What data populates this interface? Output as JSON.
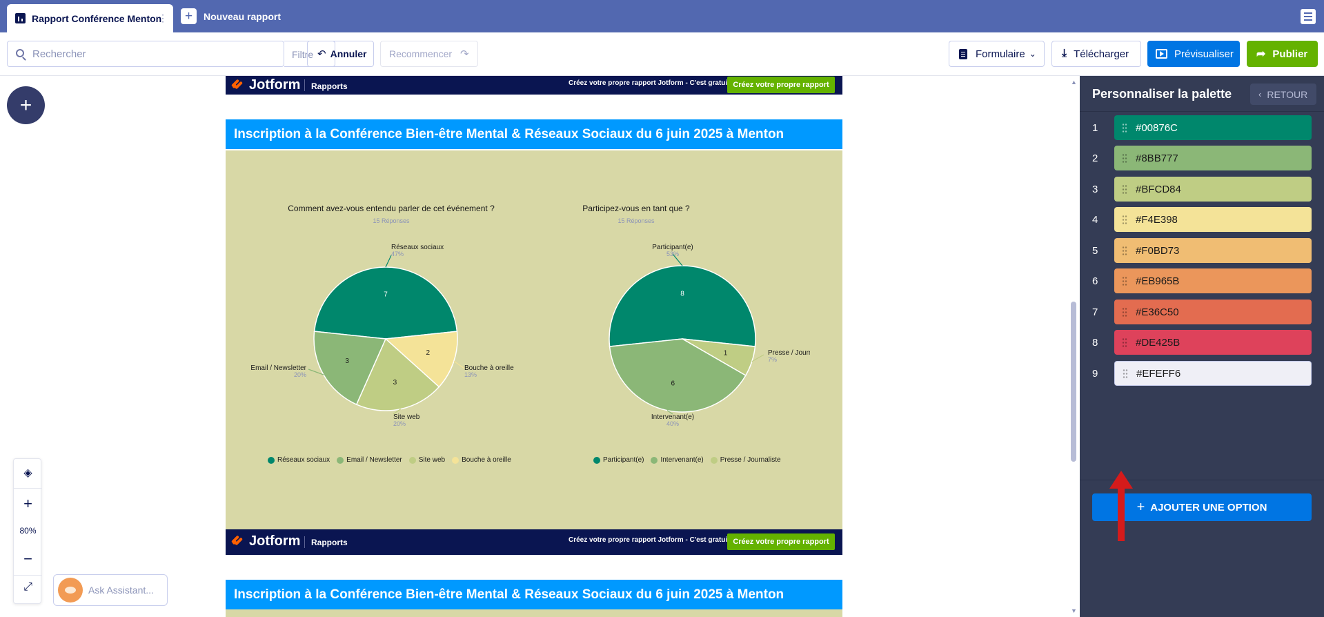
{
  "tabs": {
    "active_label": "Rapport Conférence Menton",
    "new_label": "Nouveau rapport"
  },
  "toolbar": {
    "search_placeholder": "Rechercher",
    "filter_label": "Filtre",
    "undo_label": "Annuler",
    "redo_label": "Recommencer",
    "form_label": "Formulaire",
    "download_label": "Télécharger",
    "preview_label": "Prévisualiser",
    "publish_label": "Publier"
  },
  "canvas": {
    "zoom_level": "80%",
    "assistant_label": "Ask Assistant..."
  },
  "report": {
    "brand": "Jotform",
    "brand_sub": "Rapports",
    "cta_text": "Créez votre propre rapport Jotform - C'est gratuit",
    "cta_button": "Créez votre propre rapport",
    "title": "Inscription à la Conférence Bien-être Mental & Réseaux Sociaux du 6 juin 2025 à Menton",
    "colors": {
      "header_bg": "#0099ff",
      "body_bg": "#d8d8a6",
      "bar_bg": "#0a1551",
      "cta_green": "#64b200"
    },
    "charts": [
      {
        "title": "Comment avez-vous entendu parler de cet événement ?",
        "subtitle": "15 Réponses",
        "slices": [
          {
            "label": "Réseaux sociaux",
            "value": 7,
            "pct": "47%",
            "color": "#00876C",
            "legend": "Réseaux sociaux"
          },
          {
            "label": "Bouche à oreille",
            "value": 2,
            "pct": "13%",
            "color": "#F4E398",
            "legend": "Bouche à oreille"
          },
          {
            "label": "Site web",
            "value": 3,
            "pct": "20%",
            "color": "#BFCD84",
            "legend": "Site web"
          },
          {
            "label": "Email / Newsletter",
            "value": 3,
            "pct": "20%",
            "color": "#8BB777",
            "legend": "Email / Newsletter"
          }
        ],
        "legend": [
          "Réseaux sociaux",
          "Email / Newsletter",
          "Site web",
          "Bouche à oreille"
        ]
      },
      {
        "title": "Participez-vous en tant que ?",
        "subtitle": "15 Réponses",
        "slices": [
          {
            "label": "Participant(e)",
            "value": 8,
            "pct": "53%",
            "color": "#00876C"
          },
          {
            "label": "Presse / Journaliste",
            "display_label": "Presse / Journai",
            "value": 1,
            "pct": "7%",
            "color": "#BFCD84"
          },
          {
            "label": "Intervenant(e)",
            "value": 6,
            "pct": "40%",
            "color": "#8BB777"
          }
        ],
        "legend": [
          "Participant(e)",
          "Intervenant(e)",
          "Presse / Journaliste"
        ]
      }
    ]
  },
  "chart_data": [
    {
      "type": "pie",
      "title": "Comment avez-vous entendu parler de cet événement ?",
      "subtitle": "15 Réponses",
      "categories": [
        "Réseaux sociaux",
        "Bouche à oreille",
        "Site web",
        "Email / Newsletter"
      ],
      "values": [
        7,
        2,
        3,
        3
      ],
      "percentages": [
        "47%",
        "13%",
        "20%",
        "20%"
      ],
      "legend_placement": "bottom"
    },
    {
      "type": "pie",
      "title": "Participez-vous en tant que ?",
      "subtitle": "15 Réponses",
      "categories": [
        "Participant(e)",
        "Presse / Journaliste",
        "Intervenant(e)"
      ],
      "values": [
        8,
        1,
        6
      ],
      "percentages": [
        "53%",
        "7%",
        "40%"
      ],
      "legend_placement": "bottom"
    }
  ],
  "panel": {
    "title": "Personnaliser la palette",
    "back_label": "RETOUR",
    "add_option_label": "AJOUTER UNE OPTION",
    "palette": [
      {
        "index": "1",
        "hex": "#00876C",
        "text_color": "#ffffff"
      },
      {
        "index": "2",
        "hex": "#8BB777",
        "text_color": "#1a1a1a"
      },
      {
        "index": "3",
        "hex": "#BFCD84",
        "text_color": "#1a1a1a"
      },
      {
        "index": "4",
        "hex": "#F4E398",
        "text_color": "#1a1a1a"
      },
      {
        "index": "5",
        "hex": "#F0BD73",
        "text_color": "#1a1a1a"
      },
      {
        "index": "6",
        "hex": "#EB965B",
        "text_color": "#1a1a1a"
      },
      {
        "index": "7",
        "hex": "#E36C50",
        "text_color": "#1a1a1a"
      },
      {
        "index": "8",
        "hex": "#DE425B",
        "text_color": "#1a1a1a"
      },
      {
        "index": "9",
        "hex": "#EFEFF6",
        "text_color": "#1a1a1a"
      }
    ]
  }
}
